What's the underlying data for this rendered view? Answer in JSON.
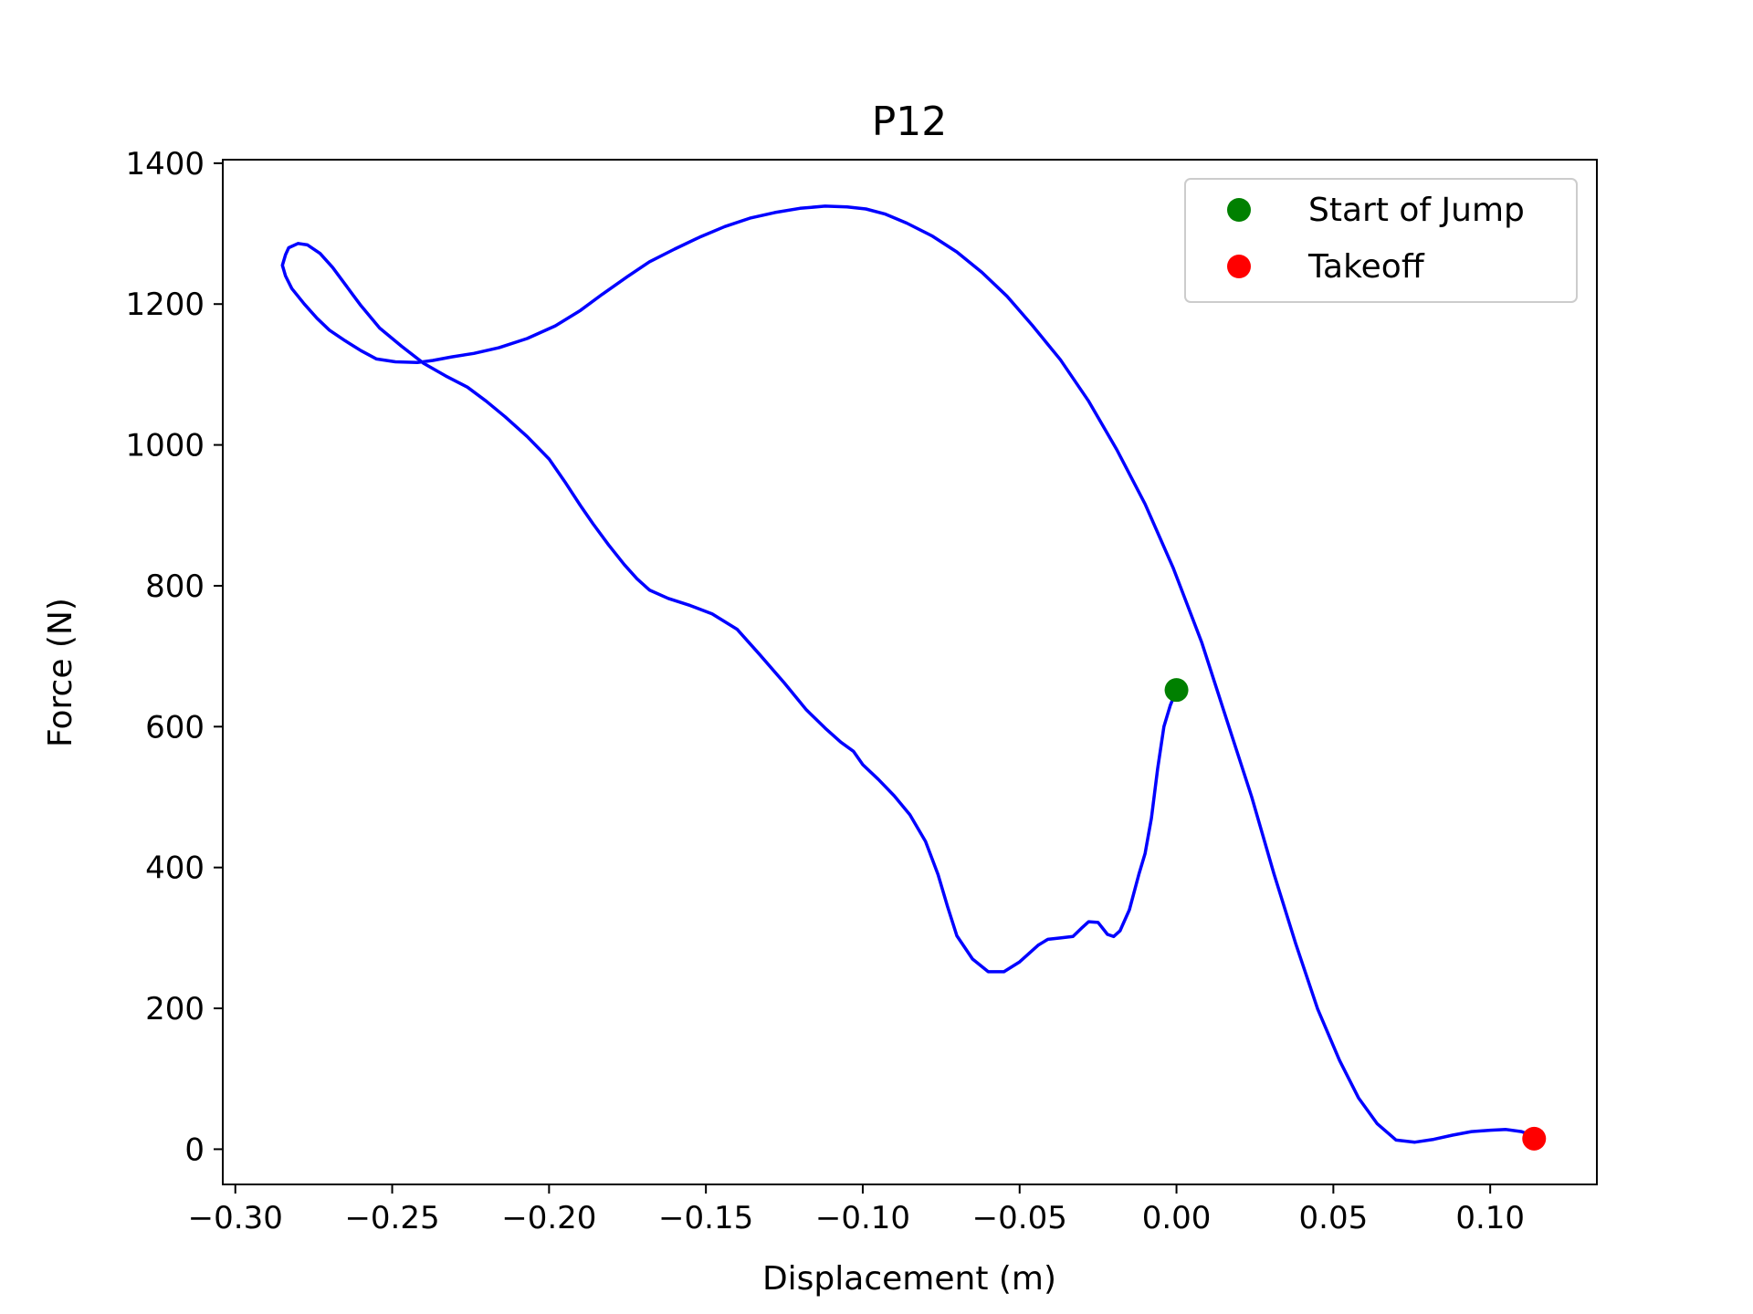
{
  "chart_data": {
    "type": "line",
    "title": "P12",
    "xlabel": "Displacement (m)",
    "ylabel": "Force (N)",
    "xlim": [
      -0.304,
      0.134
    ],
    "ylim": [
      -50,
      1405
    ],
    "x_ticks": [
      -0.3,
      -0.25,
      -0.2,
      -0.15,
      -0.1,
      -0.05,
      0.0,
      0.05,
      0.1
    ],
    "x_tick_labels": [
      "−0.30",
      "−0.25",
      "−0.20",
      "−0.15",
      "−0.10",
      "−0.05",
      "0.00",
      "0.05",
      "0.10"
    ],
    "y_ticks": [
      0,
      200,
      400,
      600,
      800,
      1000,
      1200,
      1400
    ],
    "y_tick_labels": [
      "0",
      "200",
      "400",
      "600",
      "800",
      "1000",
      "1200",
      "1400"
    ],
    "grid": false,
    "legend_position": "top-right",
    "series": [
      {
        "color": "#0000ff",
        "x": [
          0.0,
          -0.002,
          -0.004,
          -0.006,
          -0.008,
          -0.01,
          -0.012,
          -0.015,
          -0.018,
          -0.02,
          -0.022,
          -0.025,
          -0.028,
          -0.03,
          -0.033,
          -0.037,
          -0.041,
          -0.044,
          -0.047,
          -0.05,
          -0.055,
          -0.06,
          -0.065,
          -0.07,
          -0.073,
          -0.076,
          -0.08,
          -0.085,
          -0.09,
          -0.095,
          -0.1,
          -0.103,
          -0.107,
          -0.112,
          -0.118,
          -0.125,
          -0.133,
          -0.14,
          -0.148,
          -0.155,
          -0.162,
          -0.168,
          -0.172,
          -0.176,
          -0.181,
          -0.186,
          -0.19,
          -0.195,
          -0.2,
          -0.207,
          -0.214,
          -0.22,
          -0.226,
          -0.233,
          -0.24,
          -0.247,
          -0.254,
          -0.26,
          -0.265,
          -0.269,
          -0.273,
          -0.277,
          -0.28,
          -0.283,
          -0.284,
          -0.285,
          -0.284,
          -0.282,
          -0.278,
          -0.274,
          -0.27,
          -0.265,
          -0.26,
          -0.255,
          -0.249,
          -0.242,
          -0.237,
          -0.231,
          -0.224,
          -0.216,
          -0.207,
          -0.198,
          -0.19,
          -0.183,
          -0.175,
          -0.168,
          -0.16,
          -0.152,
          -0.144,
          -0.136,
          -0.128,
          -0.12,
          -0.112,
          -0.105,
          -0.099,
          -0.093,
          -0.086,
          -0.078,
          -0.07,
          -0.062,
          -0.054,
          -0.046,
          -0.037,
          -0.028,
          -0.019,
          -0.01,
          -0.001,
          0.008,
          0.016,
          0.024,
          0.031,
          0.038,
          0.045,
          0.052,
          0.058,
          0.064,
          0.07,
          0.076,
          0.082,
          0.088,
          0.094,
          0.1,
          0.105,
          0.11,
          0.113
        ],
        "y": [
          652,
          630,
          600,
          540,
          470,
          420,
          390,
          340,
          310,
          302,
          305,
          322,
          323,
          315,
          302,
          300,
          298,
          290,
          278,
          266,
          252,
          252,
          270,
          303,
          345,
          390,
          437,
          475,
          502,
          525,
          546,
          565,
          578,
          598,
          624,
          662,
          703,
          738,
          760,
          772,
          782,
          794,
          810,
          830,
          858,
          888,
          914,
          948,
          980,
          1012,
          1040,
          1062,
          1082,
          1098,
          1116,
          1140,
          1166,
          1198,
          1228,
          1252,
          1272,
          1284,
          1286,
          1280,
          1270,
          1255,
          1240,
          1222,
          1200,
          1180,
          1163,
          1148,
          1134,
          1122,
          1118,
          1117,
          1120,
          1125,
          1130,
          1138,
          1151,
          1169,
          1191,
          1214,
          1239,
          1260,
          1278,
          1295,
          1310,
          1322,
          1330,
          1336,
          1339,
          1338,
          1335,
          1328,
          1315,
          1297,
          1274,
          1245,
          1211,
          1170,
          1121,
          1062,
          993,
          916,
          825,
          720,
          610,
          500,
          392,
          292,
          199,
          126,
          73,
          36,
          13,
          10,
          14,
          20,
          25,
          27,
          28,
          25,
          20
        ]
      }
    ],
    "markers": [
      {
        "name": "Start of Jump",
        "x": 0.0,
        "y": 652,
        "color": "#008000"
      },
      {
        "name": "Takeoff",
        "x": 0.114,
        "y": 15,
        "color": "#ff0000"
      }
    ]
  }
}
